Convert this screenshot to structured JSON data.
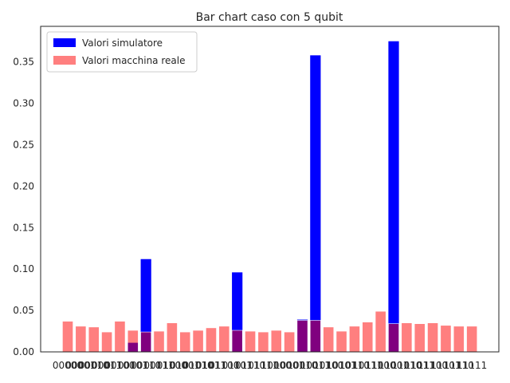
{
  "chart_data": {
    "type": "bar",
    "title": "Bar chart caso con 5 qubit",
    "xlabel": "",
    "ylabel": "",
    "ylim": [
      0,
      0.393
    ],
    "yticks": [
      0.0,
      0.05,
      0.1,
      0.15,
      0.2,
      0.25,
      0.3,
      0.35
    ],
    "ytick_labels": [
      "0.00",
      "0.05",
      "0.10",
      "0.15",
      "0.20",
      "0.25",
      "0.30",
      "0.35"
    ],
    "grid": false,
    "legend_position": "top-left",
    "categories": [
      "00000",
      "00001",
      "00010",
      "00011",
      "00100",
      "00101",
      "00110",
      "00111",
      "01000",
      "01001",
      "01010",
      "01011",
      "01100",
      "01101",
      "01110",
      "01111",
      "10000",
      "10001",
      "10010",
      "10011",
      "10100",
      "10101",
      "10110",
      "10111",
      "11000",
      "11001",
      "11010",
      "11011",
      "11100",
      "11101",
      "11110",
      "11111"
    ],
    "series": [
      {
        "name": "Valori simulatore",
        "color": "#0000ff",
        "values": [
          0,
          0,
          0,
          0,
          0,
          0.011,
          0.112,
          0,
          0,
          0,
          0,
          0,
          0,
          0.096,
          0,
          0,
          0,
          0,
          0.039,
          0.358,
          0,
          0,
          0,
          0,
          0,
          0.375,
          0,
          0,
          0,
          0,
          0,
          0
        ]
      },
      {
        "name": "Valori macchina reale",
        "color": "#ff7f7f",
        "values": [
          0.037,
          0.031,
          0.03,
          0.024,
          0.037,
          0.026,
          0.024,
          0.025,
          0.035,
          0.024,
          0.026,
          0.029,
          0.031,
          0.026,
          0.025,
          0.024,
          0.026,
          0.024,
          0.038,
          0.038,
          0.03,
          0.025,
          0.031,
          0.036,
          0.049,
          0.034,
          0.035,
          0.034,
          0.035,
          0.032,
          0.031,
          0.031
        ]
      }
    ]
  }
}
